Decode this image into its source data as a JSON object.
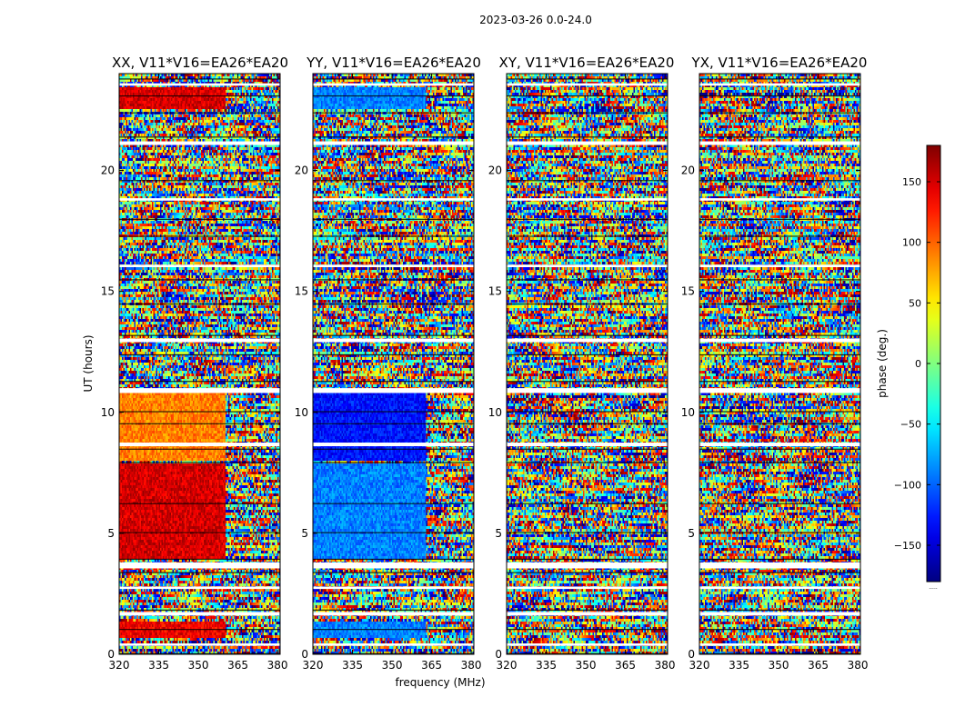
{
  "suptitle": "2023-03-26 0.0-24.0",
  "shared": {
    "xlabel": "frequency (MHz)",
    "ylabel": "UT (hours)",
    "xlim": [
      320,
      381
    ],
    "ylim": [
      0,
      24
    ],
    "xticks": [
      320,
      335,
      350,
      365,
      380
    ],
    "yticks": [
      0,
      5,
      10,
      15,
      20
    ]
  },
  "colorbar": {
    "label": "phase (deg.)",
    "range": [
      -180,
      180
    ],
    "ticks": [
      150,
      100,
      50,
      0,
      -50,
      -100,
      -150
    ],
    "tick_labels": [
      "150",
      "100",
      "50",
      "0",
      "−50",
      "−100",
      "−150"
    ],
    "footer": "....."
  },
  "chart_data": [
    {
      "type": "heatmap",
      "title": "XX, V11*V16=EA26*EA20",
      "description_regions": [
        {
          "ut": [
            4.0,
            7.9
          ],
          "freq": [
            320,
            360.5
          ],
          "phase_deg": 150
        },
        {
          "ut": [
            8.0,
            10.8
          ],
          "freq": [
            320,
            360.5
          ],
          "phase_deg": 90
        },
        {
          "ut": [
            0.7,
            1.4
          ],
          "freq": [
            320,
            360.5
          ],
          "phase_deg": 140
        },
        {
          "ut": [
            22.5,
            23.4
          ],
          "freq": [
            320,
            360.5
          ],
          "phase_deg": 150
        }
      ]
    },
    {
      "type": "heatmap",
      "title": "YY, V11*V16=EA26*EA20",
      "description_regions": [
        {
          "ut": [
            4.0,
            7.9
          ],
          "freq": [
            320,
            363
          ],
          "phase_deg": -90
        },
        {
          "ut": [
            8.0,
            10.8
          ],
          "freq": [
            320,
            363
          ],
          "phase_deg": -130
        },
        {
          "ut": [
            0.7,
            1.4
          ],
          "freq": [
            320,
            363
          ],
          "phase_deg": -90
        },
        {
          "ut": [
            22.5,
            23.4
          ],
          "freq": [
            320,
            363
          ],
          "phase_deg": -90
        }
      ]
    },
    {
      "type": "heatmap",
      "title": "XY, V11*V16=EA26*EA20",
      "description_regions": []
    },
    {
      "type": "heatmap",
      "title": "YX, V11*V16=EA26*EA20",
      "description_regions": []
    }
  ]
}
